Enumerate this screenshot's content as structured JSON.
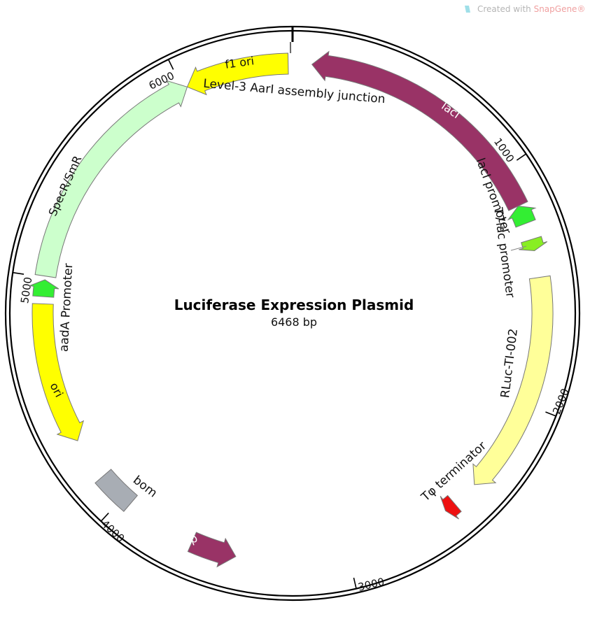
{
  "watermark": {
    "prefix": "Created with ",
    "brand": "SnapGene®"
  },
  "plasmid": {
    "name": "Luciferase Expression Plasmid",
    "size_label": "6468 bp",
    "length_bp": 6468
  },
  "ticks": [
    {
      "label": "1000",
      "bp": 1000
    },
    {
      "label": "2000",
      "bp": 2000
    },
    {
      "label": "3000",
      "bp": 3000
    },
    {
      "label": "4000",
      "bp": 4000
    },
    {
      "label": "5000",
      "bp": 5000
    },
    {
      "label": "6000",
      "bp": 6000
    }
  ],
  "features": [
    {
      "id": "laci",
      "label": "lacI",
      "start_bp": 80,
      "end_bp": 1160,
      "direction": "ccw",
      "color": "#993366",
      "text_color": "#ffffff"
    },
    {
      "id": "laci-pro",
      "label": "lacI promoter",
      "start_bp": 1160,
      "end_bp": 1238,
      "direction": "ccw",
      "color": "#33ee33",
      "text_color": "#111111"
    },
    {
      "id": "t7lac",
      "label": "T7lac promoter",
      "start_bp": 1308,
      "end_bp": 1356,
      "direction": "cw",
      "color": "#88ee22",
      "text_color": "#111111"
    },
    {
      "id": "rluc",
      "label": "RLuc-TI-002",
      "start_bp": 1468,
      "end_bp": 2395,
      "direction": "cw",
      "color": "#ffff99",
      "text_color": "#111111"
    },
    {
      "id": "tphi",
      "label": "Tφ terminator",
      "start_bp": 2508,
      "end_bp": 2556,
      "direction": "cw",
      "color": "#ee1111",
      "text_color": "#111111"
    },
    {
      "id": "rop",
      "label": "rop",
      "start_bp": 3470,
      "end_bp": 3660,
      "direction": "ccw",
      "color": "#993366",
      "text_color": "#ffffff"
    },
    {
      "id": "bom",
      "label": "bom",
      "start_bp": 3960,
      "end_bp": 4120,
      "direction": "none",
      "color": "#a8adb4",
      "text_color": "#111111"
    },
    {
      "id": "ori",
      "label": "ori",
      "start_bp": 4300,
      "end_bp": 4890,
      "direction": "ccw",
      "color": "#ffff00",
      "text_color": "#111111"
    },
    {
      "id": "aada-pro",
      "label": "aadA Promoter",
      "start_bp": 4920,
      "end_bp": 4990,
      "direction": "cw",
      "color": "#33ee33",
      "text_color": "#111111"
    },
    {
      "id": "specr",
      "label": "SpecR/SmR",
      "start_bp": 5005,
      "end_bp": 6020,
      "direction": "cw",
      "color": "#ccffcc",
      "text_color": "#111111"
    },
    {
      "id": "f1ori",
      "label": "f1 ori",
      "start_bp": 6020,
      "end_bp": 6450,
      "direction": "ccw",
      "color": "#ffff00",
      "text_color": "#111111"
    }
  ],
  "junction": {
    "label": "Level-3 AarI assembly junction",
    "bp": 6460
  }
}
